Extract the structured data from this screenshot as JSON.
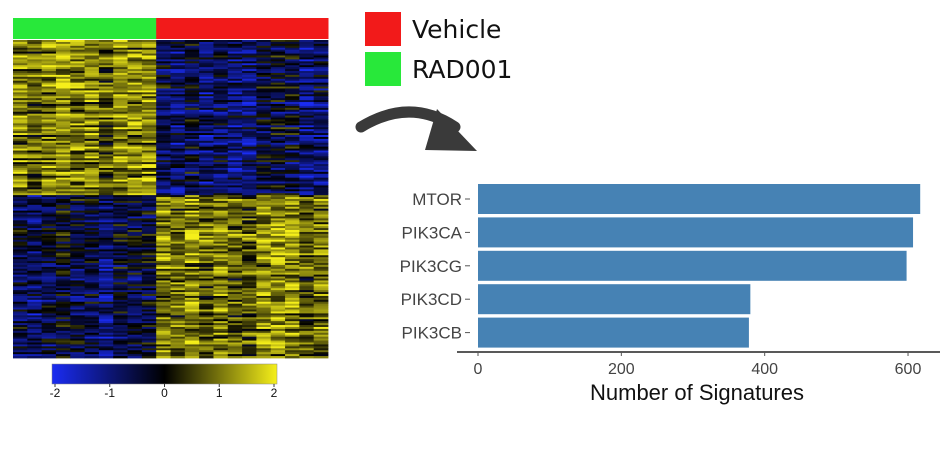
{
  "chart_data": [
    {
      "type": "heatmap",
      "title": "",
      "groups": [
        {
          "name": "RAD001",
          "color": "#28e83a",
          "columns": 10
        },
        {
          "name": "Vehicle",
          "color": "#f21a1a",
          "columns": 12
        }
      ],
      "clusters": [
        {
          "name": "upper",
          "rows": 80,
          "pattern": {
            "RAD001": "high",
            "Vehicle": "low"
          }
        },
        {
          "name": "lower",
          "rows": 84,
          "pattern": {
            "RAD001": "low",
            "Vehicle": "high"
          }
        }
      ],
      "colorbar": {
        "min": -2,
        "max": 2,
        "ticks": [
          "-2",
          "-1",
          "0",
          "1",
          "2"
        ],
        "colors": [
          "#1a2cf2",
          "#000000",
          "#f5ef1a"
        ]
      }
    },
    {
      "type": "bar",
      "orientation": "horizontal",
      "categories": [
        "MTOR",
        "PIK3CA",
        "PIK3CG",
        "PIK3CD",
        "PIK3CB"
      ],
      "values": [
        617,
        607,
        598,
        380,
        378
      ],
      "xlabel": "Number of Signatures",
      "ylabel": "",
      "xlim": [
        0,
        640
      ],
      "xticks": [
        "0",
        "200",
        "400",
        "600"
      ],
      "bar_color": "#4682b4"
    }
  ],
  "legend": {
    "items": [
      {
        "label": "Vehicle",
        "color": "#f21a1a"
      },
      {
        "label": "RAD001",
        "color": "#28e83a"
      }
    ]
  },
  "arrow_icon": "curved-arrow-icon"
}
